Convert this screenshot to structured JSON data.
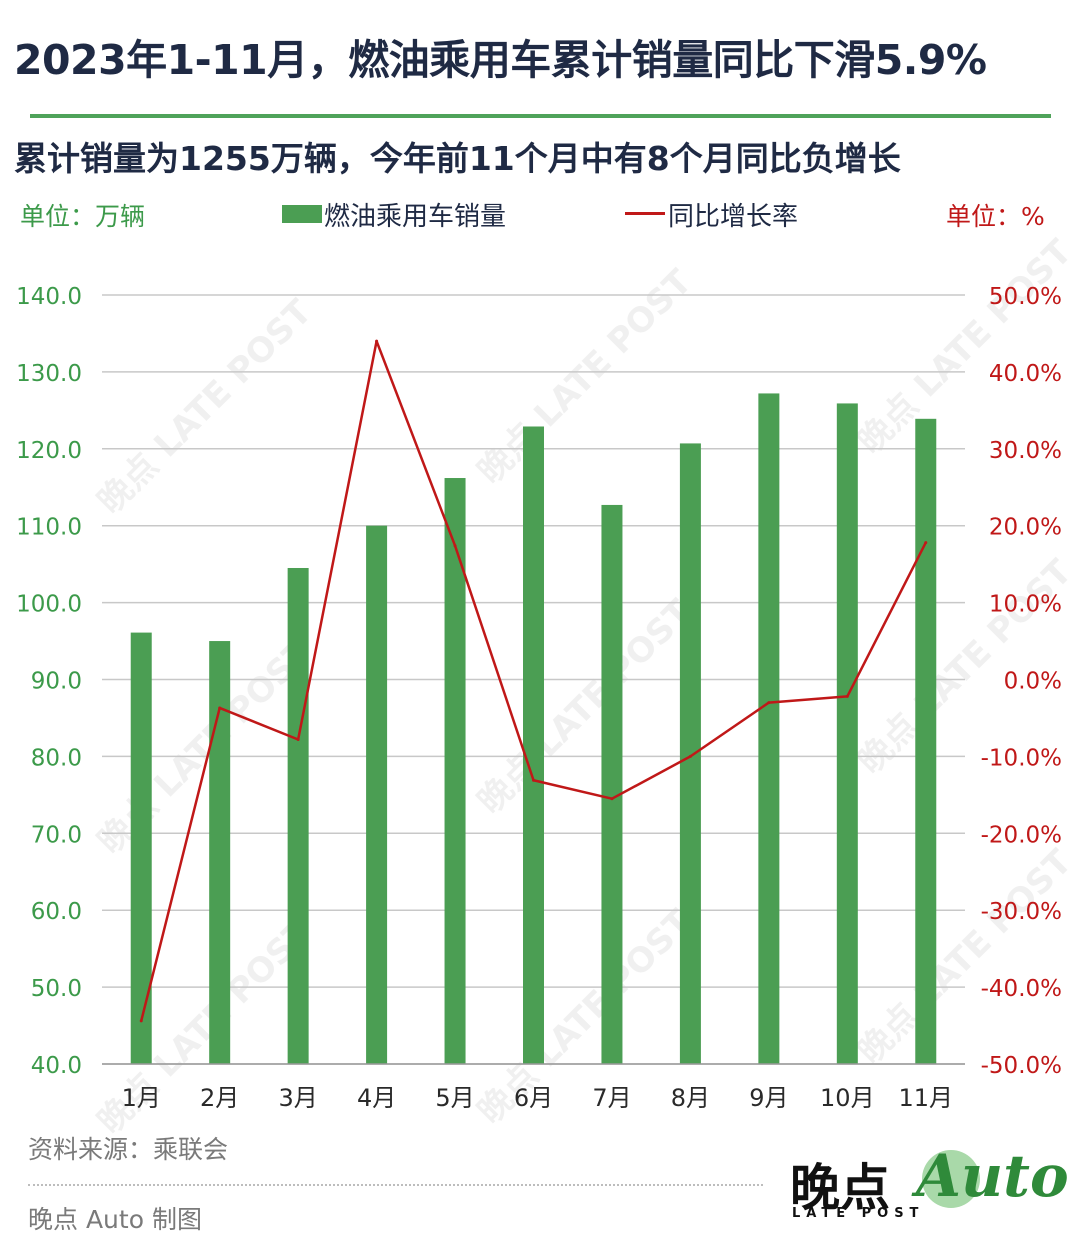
{
  "title": "2023年1-11月，燃油乘用车累计销量同比下滑5.9%",
  "subtitle": "累计销量为1255万辆，今年前11个月中有8个月同比负增长",
  "unit_left": "单位：万辆",
  "unit_right": "单位：%",
  "legend": {
    "bar": "燃油乘用车销量",
    "line": "同比增长率"
  },
  "source": "资料来源：乘联会",
  "credit": "晚点 Auto 制图",
  "logo": {
    "main": "晚点",
    "sub": "LATE POST",
    "auto": "Auto"
  },
  "watermark": "晚点 LATE POST",
  "colors": {
    "bar": "#4b9e53",
    "line": "#c01818",
    "left_axis": "#3c9a4a",
    "right_axis": "#c01818",
    "rule": "#4fa35a"
  },
  "chart_data": {
    "type": "bar",
    "categories": [
      "1月",
      "2月",
      "3月",
      "4月",
      "5月",
      "6月",
      "7月",
      "8月",
      "9月",
      "10月",
      "11月"
    ],
    "series": [
      {
        "name": "燃油乘用车销量",
        "type": "bar",
        "axis": "left",
        "values": [
          96.1,
          95.0,
          104.5,
          110.0,
          116.2,
          122.9,
          112.7,
          120.7,
          127.2,
          125.9,
          123.9
        ]
      },
      {
        "name": "同比增长率",
        "type": "line",
        "axis": "right",
        "values": [
          -44.4,
          -3.7,
          -7.8,
          44.0,
          17.4,
          -13.1,
          -15.5,
          -10.0,
          -3.0,
          -2.2,
          17.8
        ]
      }
    ],
    "ylim_left": [
      40,
      140
    ],
    "ylim_right": [
      -50,
      50
    ],
    "yticks_left": [
      "140.0",
      "130.0",
      "120.0",
      "110.0",
      "100.0",
      "90.0",
      "80.0",
      "70.0",
      "60.0",
      "50.0",
      "40.0"
    ],
    "yticks_right": [
      "50.0%",
      "40.0%",
      "30.0%",
      "20.0%",
      "10.0%",
      "0.0%",
      "-10.0%",
      "-20.0%",
      "-30.0%",
      "-40.0%",
      "-50.0%"
    ],
    "grid": true,
    "legend_position": "top"
  }
}
